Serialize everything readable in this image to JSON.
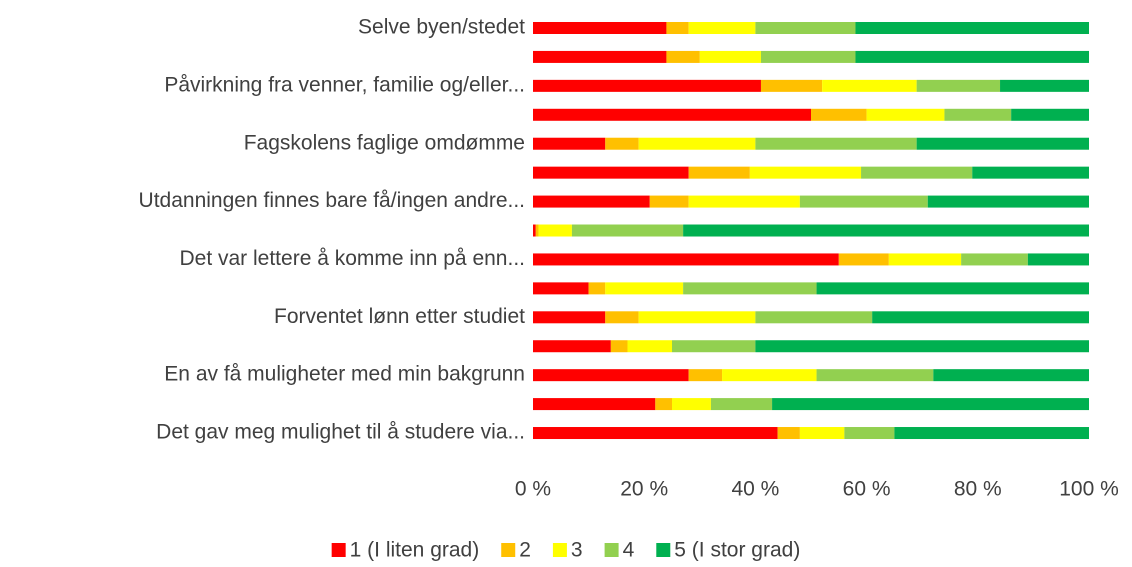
{
  "chart_data": {
    "type": "stacked_barh",
    "categories": [
      "Selve byen/stedet",
      null,
      "Påvirkning fra venner, familie og/eller...",
      null,
      "Fagskolens faglige omdømme",
      null,
      "Utdanningen finnes bare få/ingen andre...",
      null,
      "Det var lettere å komme inn på enn...",
      null,
      "Forventet lønn etter studiet",
      null,
      "En av få muligheter med min bakgrunn",
      null,
      "Det gav meg mulighet til å studere via..."
    ],
    "series": [
      {
        "name": "1 (I liten grad)",
        "color": "#ff0000",
        "values": [
          24,
          24,
          41,
          50,
          13,
          28,
          21,
          0.5,
          55,
          10,
          13,
          14,
          28,
          22,
          44
        ]
      },
      {
        "name": "2",
        "color": "#ffc000",
        "values": [
          4,
          6,
          11,
          10,
          6,
          11,
          7,
          0.5,
          9,
          3,
          6,
          3,
          6,
          3,
          4
        ]
      },
      {
        "name": "3",
        "color": "#ffff00",
        "values": [
          12,
          11,
          17,
          14,
          21,
          20,
          20,
          6,
          13,
          14,
          21,
          8,
          17,
          7,
          8
        ]
      },
      {
        "name": "4",
        "color": "#92d050",
        "values": [
          18,
          17,
          15,
          12,
          29,
          20,
          23,
          20,
          12,
          24,
          21,
          15,
          21,
          11,
          9
        ]
      },
      {
        "name": "5 (I stor grad)",
        "color": "#00b050",
        "values": [
          42,
          42,
          16,
          14,
          31,
          21,
          29,
          73,
          11,
          49,
          39,
          60,
          28,
          57,
          35
        ]
      }
    ],
    "xlim": [
      0,
      100
    ],
    "xticks": [
      {
        "value": 0,
        "label": "0 %"
      },
      {
        "value": 20,
        "label": "20 %"
      },
      {
        "value": 40,
        "label": "40 %"
      },
      {
        "value": 60,
        "label": "60 %"
      },
      {
        "value": 80,
        "label": "80 %"
      },
      {
        "value": 100,
        "label": "100 %"
      }
    ],
    "legend": "bottom"
  }
}
